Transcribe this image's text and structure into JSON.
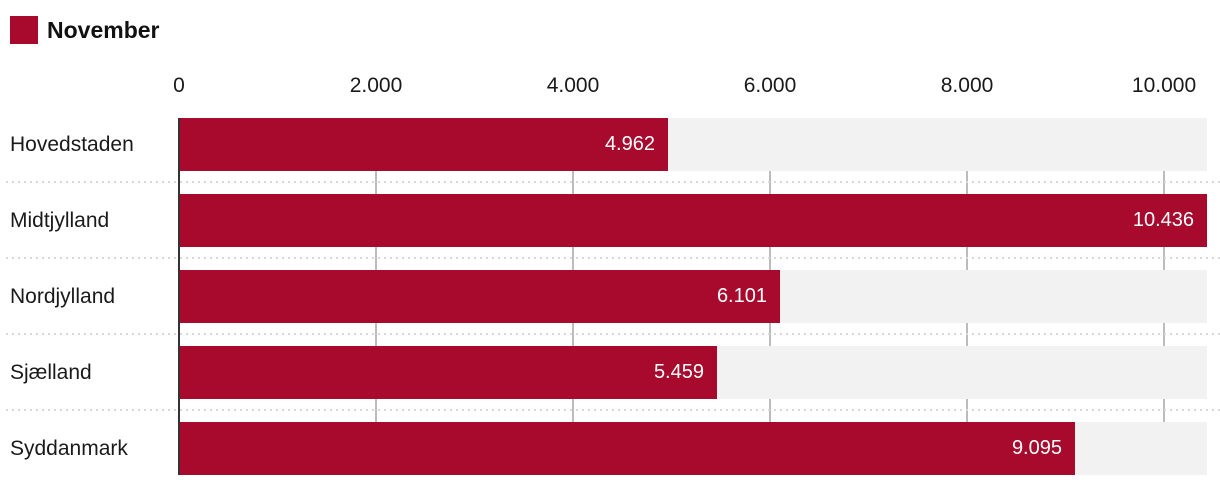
{
  "legend": {
    "label": "November",
    "color": "#A70A2D"
  },
  "chart_data": {
    "type": "bar",
    "orientation": "horizontal",
    "title": "",
    "series_name": "November",
    "categories": [
      "Hovedstaden",
      "Midtjylland",
      "Nordjylland",
      "Sjælland",
      "Syddanmark"
    ],
    "values": [
      4962,
      10436,
      6101,
      5459,
      9095
    ],
    "value_labels": [
      "4.962",
      "10.436",
      "6.101",
      "5.459",
      "9.095"
    ],
    "xlim": [
      0,
      10436
    ],
    "tick_values": [
      0,
      2000,
      4000,
      6000,
      8000,
      10000
    ],
    "tick_labels": [
      "0",
      "2.000",
      "4.000",
      "6.000",
      "8.000",
      "10.000"
    ],
    "axis_position": "top",
    "grid": "vertical",
    "legend_position": "top-left",
    "colors": {
      "bar": "#A70A2D",
      "track": "#F2F2F2",
      "gridline": "#BCBCBC",
      "axis_line": "#333333",
      "separator_dots": "#D8D8D8",
      "value_text": "#FFFFFF",
      "label_text": "#1A1A1A"
    }
  }
}
